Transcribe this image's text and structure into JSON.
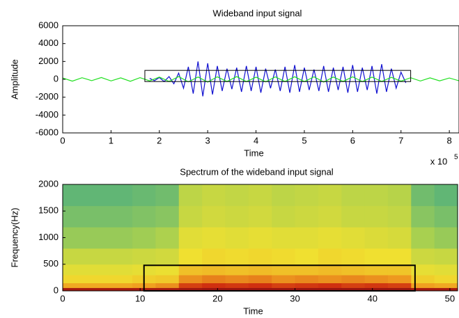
{
  "chart_data": [
    {
      "type": "line",
      "title": "Wideband input signal",
      "xlabel": "Time",
      "ylabel": "Amplitude",
      "x_multiplier": "x 10",
      "x_exponent": "5",
      "xlim": [
        0,
        8.2
      ],
      "xticks": [
        0,
        1,
        2,
        3,
        4,
        5,
        6,
        7,
        8
      ],
      "ylim": [
        -6000,
        6000
      ],
      "yticks": [
        -6000,
        -4000,
        -2000,
        0,
        2000,
        4000,
        6000
      ],
      "highlight": {
        "x": [
          1.7,
          7.2
        ],
        "y": [
          -250,
          1000
        ]
      },
      "series": [
        {
          "color": "#1010d0",
          "x": [
            1.8,
            1.9,
            2.0,
            2.1,
            2.2,
            2.3,
            2.4,
            2.5,
            2.6,
            2.7,
            2.8,
            2.9,
            3.0,
            3.1,
            3.2,
            3.3,
            3.4,
            3.5,
            3.6,
            3.7,
            3.8,
            3.9,
            4.0,
            4.1,
            4.2,
            4.3,
            4.4,
            4.5,
            4.6,
            4.7,
            4.8,
            4.9,
            5.0,
            5.1,
            5.2,
            5.3,
            5.4,
            5.5,
            5.6,
            5.7,
            5.8,
            5.9,
            6.0,
            6.1,
            6.2,
            6.3,
            6.4,
            6.5,
            6.6,
            6.7,
            6.8,
            6.9,
            7.0,
            7.1
          ],
          "values": [
            100,
            -150,
            200,
            -250,
            300,
            -500,
            700,
            -1000,
            1400,
            -1600,
            2000,
            -1900,
            1800,
            -1700,
            1500,
            -1300,
            1200,
            -1100,
            1300,
            -1400,
            1500,
            -1300,
            1400,
            -1500,
            1200,
            -1000,
            1100,
            -1300,
            1400,
            -1500,
            1600,
            -1400,
            1300,
            -1200,
            1100,
            -1300,
            1500,
            -1400,
            1300,
            -1200,
            1400,
            -1500,
            1600,
            -1400,
            1300,
            -1200,
            1500,
            -1600,
            1700,
            -1400,
            1200,
            -1000,
            800,
            -400
          ]
        },
        {
          "color": "#20e020",
          "x": [
            0,
            0.2,
            0.4,
            0.6,
            0.8,
            1.0,
            1.2,
            1.4,
            1.6,
            1.8,
            2.0,
            2.2,
            2.4,
            2.6,
            2.8,
            3.0,
            3.2,
            3.4,
            3.6,
            3.8,
            4.0,
            4.2,
            4.4,
            4.6,
            4.8,
            5.0,
            5.2,
            5.4,
            5.6,
            5.8,
            6.0,
            6.2,
            6.4,
            6.6,
            6.8,
            7.0,
            7.2,
            7.4,
            7.6,
            7.8,
            8.0,
            8.2
          ],
          "values": [
            150,
            -200,
            180,
            -150,
            200,
            -180,
            160,
            -220,
            190,
            -170,
            250,
            -230,
            300,
            -280,
            260,
            -300,
            280,
            -250,
            300,
            -260,
            240,
            -280,
            270,
            -250,
            290,
            -260,
            280,
            -300,
            260,
            -240,
            280,
            -260,
            250,
            -230,
            220,
            -200,
            180,
            -190,
            160,
            -170,
            150,
            -160
          ]
        }
      ]
    },
    {
      "type": "heatmap",
      "title": "Spectrum of the wideband input signal",
      "xlabel": "Time",
      "ylabel": "Frequency(Hz)",
      "xlim": [
        0,
        51
      ],
      "xticks": [
        0,
        10,
        20,
        30,
        40,
        50
      ],
      "ylim": [
        0,
        2000
      ],
      "yticks": [
        0,
        500,
        1000,
        1500,
        2000
      ],
      "highlight": {
        "x": [
          10.5,
          45.5
        ],
        "y": [
          0,
          480
        ]
      },
      "x": [
        0,
        3,
        6,
        9,
        12,
        15,
        18,
        21,
        24,
        27,
        30,
        33,
        36,
        39,
        42,
        45,
        48,
        51
      ],
      "y": [
        0,
        60,
        150,
        300,
        500,
        800,
        1200,
        1600,
        2000
      ],
      "zlim": [
        0.3,
        1
      ],
      "colormap": [
        "#3aa88a",
        "#a8d050",
        "#f0e030",
        "#f0a020",
        "#d03010",
        "#901010"
      ],
      "values": [
        [
          0.95,
          0.95,
          0.95,
          0.95,
          0.95,
          0.97,
          0.98,
          0.98,
          0.98,
          0.98,
          0.98,
          0.98,
          0.98,
          0.98,
          0.98,
          0.95,
          0.95
        ],
        [
          0.7,
          0.7,
          0.7,
          0.72,
          0.74,
          0.84,
          0.86,
          0.85,
          0.86,
          0.84,
          0.85,
          0.86,
          0.84,
          0.85,
          0.84,
          0.72,
          0.7
        ],
        [
          0.6,
          0.6,
          0.6,
          0.62,
          0.63,
          0.74,
          0.76,
          0.75,
          0.76,
          0.74,
          0.75,
          0.74,
          0.75,
          0.74,
          0.73,
          0.62,
          0.6
        ],
        [
          0.55,
          0.55,
          0.55,
          0.56,
          0.57,
          0.65,
          0.66,
          0.65,
          0.66,
          0.65,
          0.65,
          0.66,
          0.65,
          0.64,
          0.64,
          0.56,
          0.55
        ],
        [
          0.5,
          0.5,
          0.5,
          0.51,
          0.52,
          0.58,
          0.6,
          0.59,
          0.6,
          0.59,
          0.58,
          0.6,
          0.59,
          0.58,
          0.58,
          0.51,
          0.5
        ],
        [
          0.42,
          0.42,
          0.42,
          0.43,
          0.45,
          0.55,
          0.56,
          0.55,
          0.56,
          0.55,
          0.55,
          0.56,
          0.55,
          0.54,
          0.53,
          0.44,
          0.42
        ],
        [
          0.38,
          0.38,
          0.38,
          0.39,
          0.4,
          0.5,
          0.52,
          0.51,
          0.52,
          0.5,
          0.51,
          0.52,
          0.5,
          0.5,
          0.49,
          0.4,
          0.38
        ],
        [
          0.35,
          0.35,
          0.35,
          0.36,
          0.37,
          0.48,
          0.5,
          0.49,
          0.5,
          0.48,
          0.49,
          0.5,
          0.48,
          0.48,
          0.47,
          0.37,
          0.35
        ]
      ]
    }
  ]
}
